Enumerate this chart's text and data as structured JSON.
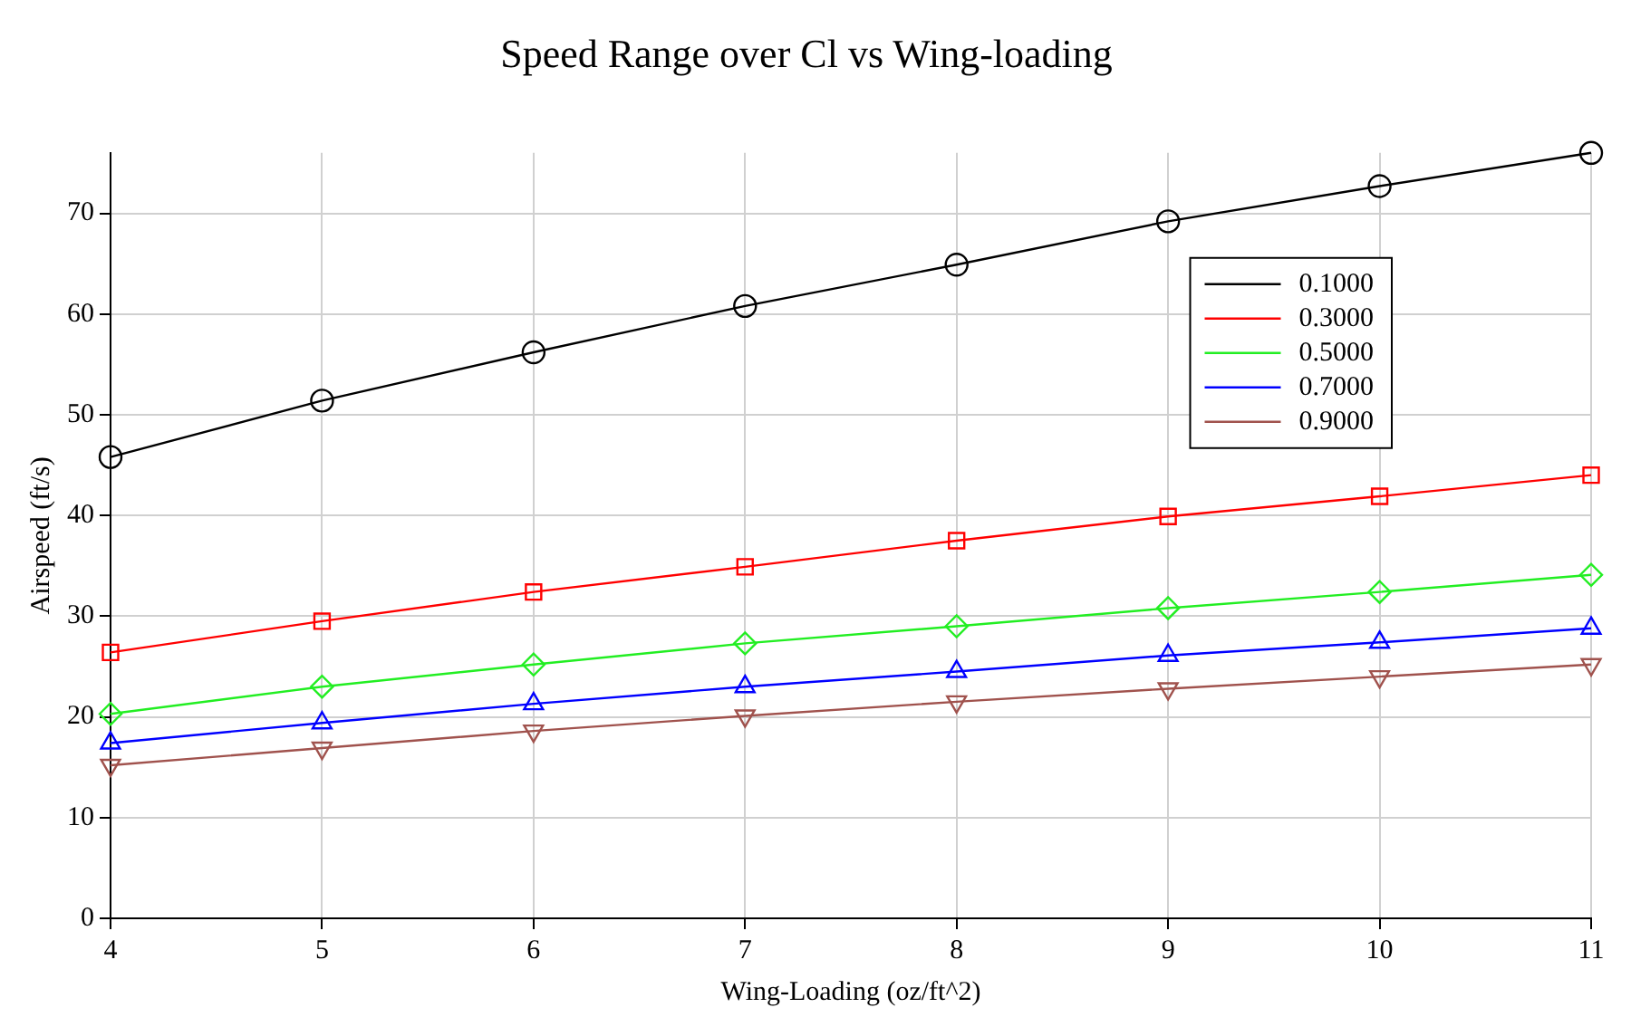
{
  "chart_data": {
    "type": "line",
    "title": "Speed Range over Cl vs Wing-loading",
    "xlabel": "Wing-Loading (oz/ft^2)",
    "ylabel": "Airspeed (ft/s)",
    "x": [
      4,
      5,
      6,
      7,
      8,
      9,
      10,
      11
    ],
    "xlim": [
      4,
      11
    ],
    "xticks": [
      4,
      5,
      6,
      7,
      8,
      9,
      10,
      11
    ],
    "ylim": [
      0,
      76
    ],
    "yticks": [
      0,
      10,
      20,
      30,
      40,
      50,
      60,
      70
    ],
    "grid": true,
    "legend": "top right",
    "line_style": "solid",
    "series": [
      {
        "name": "0.1000",
        "color": "#000000",
        "marker": "circle",
        "values": [
          45.8,
          51.4,
          56.2,
          60.8,
          64.9,
          69.2,
          72.7,
          76
        ]
      },
      {
        "name": "0.3000",
        "color": "#ff0000",
        "marker": "square",
        "values": [
          26.4,
          29.5,
          32.4,
          34.9,
          37.5,
          39.9,
          41.9,
          44.0
        ]
      },
      {
        "name": "0.5000",
        "color": "#22ee22",
        "marker": "diamond",
        "values": [
          20.3,
          23.0,
          25.2,
          27.3,
          29.0,
          30.8,
          32.4,
          34.1
        ]
      },
      {
        "name": "0.7000",
        "color": "#0000ff",
        "marker": "triangle",
        "values": [
          17.4,
          19.4,
          21.3,
          23.0,
          24.5,
          26.1,
          27.4,
          28.8
        ]
      },
      {
        "name": "0.9000",
        "color": "#a0524d",
        "marker": "triangle-down",
        "values": [
          15.2,
          16.9,
          18.6,
          20.1,
          21.5,
          22.8,
          24.0,
          25.2
        ]
      }
    ]
  }
}
